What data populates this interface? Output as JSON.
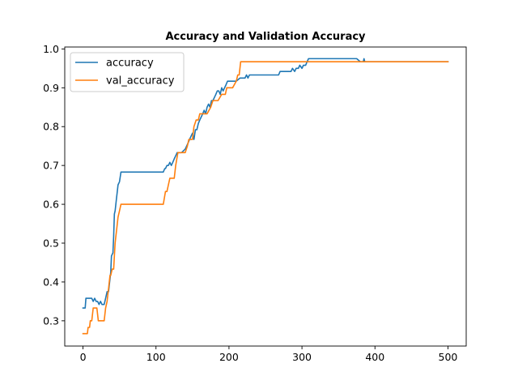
{
  "chart_data": {
    "type": "line",
    "title": "Accuracy and Validation Accuracy",
    "xlabel": "",
    "ylabel": "",
    "xlim": [
      -25,
      525
    ],
    "ylim": [
      0.235,
      1.005
    ],
    "xticks": [
      0,
      100,
      200,
      300,
      400,
      500
    ],
    "yticks": [
      0.3,
      0.4,
      0.5,
      0.6,
      0.7,
      0.8,
      0.9,
      1.0
    ],
    "xtick_labels": [
      "0",
      "100",
      "200",
      "300",
      "400",
      "500"
    ],
    "ytick_labels": [
      "0.3",
      "0.4",
      "0.5",
      "0.6",
      "0.7",
      "0.8",
      "0.9",
      "1.0"
    ],
    "grid": false,
    "legend_position": "top-left",
    "series": [
      {
        "name": "accuracy",
        "color": "#1f77b4",
        "x": [
          0,
          3,
          4,
          12,
          14,
          16,
          18,
          20,
          22,
          24,
          26,
          29,
          31,
          33,
          35,
          36,
          37,
          38,
          39,
          41,
          42,
          43,
          44,
          45,
          46,
          47,
          48,
          50,
          52,
          60,
          110,
          112,
          113,
          115,
          117,
          119,
          121,
          123,
          125,
          127,
          129,
          135,
          140,
          142,
          144,
          146,
          148,
          150,
          152,
          154,
          156,
          158,
          160,
          162,
          164,
          166,
          168,
          170,
          172,
          174,
          176,
          178,
          180,
          182,
          184,
          186,
          188,
          190,
          192,
          194,
          196,
          198,
          200,
          210,
          215,
          218,
          222,
          224,
          226,
          228,
          230,
          250,
          268,
          270,
          280,
          285,
          287,
          290,
          292,
          295,
          297,
          300,
          302,
          305,
          307,
          309,
          312,
          330,
          350,
          375,
          380,
          383,
          384,
          385,
          386,
          387,
          390,
          420,
          450,
          480,
          500
        ],
        "y": [
          0.333,
          0.333,
          0.358,
          0.358,
          0.35,
          0.358,
          0.35,
          0.35,
          0.342,
          0.35,
          0.342,
          0.342,
          0.358,
          0.375,
          0.375,
          0.392,
          0.408,
          0.425,
          0.467,
          0.475,
          0.517,
          0.575,
          0.583,
          0.6,
          0.617,
          0.633,
          0.65,
          0.658,
          0.683,
          0.683,
          0.683,
          0.692,
          0.692,
          0.7,
          0.7,
          0.708,
          0.7,
          0.708,
          0.717,
          0.725,
          0.733,
          0.733,
          0.742,
          0.75,
          0.758,
          0.767,
          0.775,
          0.783,
          0.767,
          0.792,
          0.792,
          0.808,
          0.817,
          0.825,
          0.833,
          0.842,
          0.833,
          0.85,
          0.858,
          0.85,
          0.867,
          0.867,
          0.875,
          0.883,
          0.892,
          0.892,
          0.883,
          0.9,
          0.892,
          0.9,
          0.908,
          0.917,
          0.917,
          0.917,
          0.925,
          0.925,
          0.925,
          0.933,
          0.925,
          0.933,
          0.933,
          0.933,
          0.933,
          0.942,
          0.942,
          0.942,
          0.95,
          0.942,
          0.95,
          0.95,
          0.958,
          0.95,
          0.958,
          0.958,
          0.967,
          0.975,
          0.975,
          0.975,
          0.975,
          0.975,
          0.967,
          0.967,
          0.967,
          0.975,
          0.967,
          0.967,
          0.967,
          0.967,
          0.967,
          0.967,
          0.967
        ]
      },
      {
        "name": "val_accuracy",
        "color": "#ff7f0e",
        "x": [
          0,
          6,
          7,
          9,
          10,
          12,
          14,
          19,
          21,
          23,
          25,
          29,
          31,
          33,
          34,
          35,
          36,
          37,
          38,
          40,
          42,
          43,
          44,
          45,
          46,
          47,
          48,
          50,
          52,
          60,
          110,
          113,
          115,
          117,
          119,
          121,
          123,
          125,
          127,
          130,
          135,
          140,
          143,
          145,
          148,
          150,
          152,
          155,
          158,
          160,
          163,
          165,
          170,
          175,
          178,
          180,
          183,
          185,
          190,
          195,
          197,
          200,
          205,
          210,
          212,
          214,
          215,
          216,
          220,
          250,
          300,
          350,
          400,
          450,
          500
        ],
        "y": [
          0.267,
          0.267,
          0.283,
          0.283,
          0.3,
          0.3,
          0.333,
          0.333,
          0.3,
          0.3,
          0.3,
          0.3,
          0.333,
          0.35,
          0.367,
          0.383,
          0.4,
          0.417,
          0.417,
          0.433,
          0.433,
          0.467,
          0.5,
          0.517,
          0.533,
          0.55,
          0.567,
          0.583,
          0.6,
          0.6,
          0.6,
          0.633,
          0.633,
          0.65,
          0.667,
          0.667,
          0.667,
          0.667,
          0.7,
          0.733,
          0.733,
          0.733,
          0.75,
          0.767,
          0.767,
          0.767,
          0.8,
          0.817,
          0.817,
          0.833,
          0.833,
          0.833,
          0.833,
          0.85,
          0.867,
          0.867,
          0.867,
          0.867,
          0.883,
          0.883,
          0.9,
          0.9,
          0.9,
          0.917,
          0.933,
          0.933,
          0.95,
          0.967,
          0.967,
          0.967,
          0.967,
          0.967,
          0.967,
          0.967,
          0.967
        ]
      }
    ]
  }
}
